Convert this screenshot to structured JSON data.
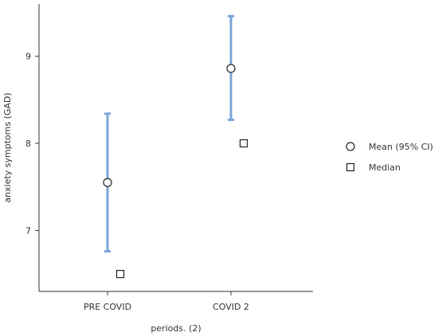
{
  "chart_data": {
    "type": "scatter",
    "xlabel": "periods. (2)",
    "ylabel": "anxiety symptoms (GAD)",
    "categories": [
      "PRE COVID",
      "COVID 2"
    ],
    "ylim": [
      6.3,
      9.6
    ],
    "yticks": [
      7,
      8,
      9
    ],
    "grid": false,
    "legend_position": "right",
    "series": [
      {
        "name": "Mean (95% CI)",
        "marker": "circle",
        "values": [
          7.55,
          8.86
        ],
        "ci_lower": [
          6.76,
          8.27
        ],
        "ci_upper": [
          8.34,
          9.46
        ]
      },
      {
        "name": "Median",
        "marker": "square",
        "values": [
          6.5,
          8.0
        ]
      }
    ],
    "colors": {
      "error_bar": "#7aa6d9",
      "marker_stroke": "#222222",
      "axis": "#333333"
    }
  }
}
